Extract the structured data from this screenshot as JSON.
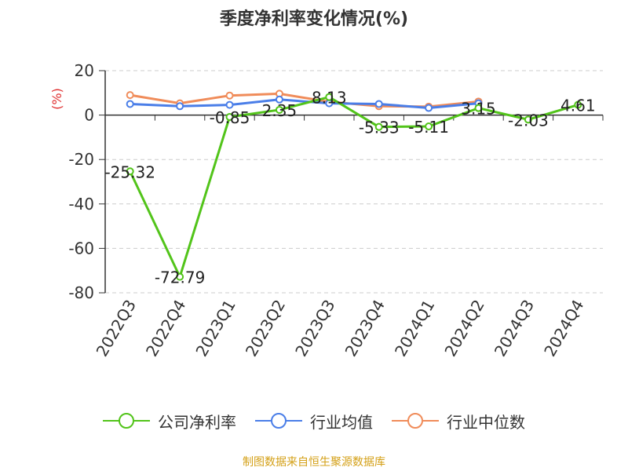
{
  "chart_data": {
    "type": "line",
    "title": "季度净利率变化情况(%)",
    "ylabel": "(%)",
    "xlabel": "",
    "ylim": [
      -80,
      20
    ],
    "yticks": [
      20,
      0,
      -20,
      -40,
      -60,
      -80
    ],
    "grid": true,
    "legend_position": "bottom",
    "categories": [
      "2022Q3",
      "2022Q4",
      "2023Q1",
      "2023Q2",
      "2023Q3",
      "2023Q4",
      "2024Q1",
      "2024Q2",
      "2024Q3",
      "2024Q4"
    ],
    "series": [
      {
        "name": "公司净利率",
        "color": "#52c41a",
        "values": [
          -25.32,
          -72.79,
          -0.85,
          2.35,
          8.13,
          -5.33,
          -5.11,
          3.15,
          -2.03,
          4.61
        ],
        "labels": [
          "-25.32",
          "-72.79",
          "-0.85",
          "2.35",
          "8.13",
          "-5.33",
          "-5.11",
          "3.15",
          "-2.03",
          "4.61"
        ]
      },
      {
        "name": "行业均值",
        "color": "#4a7ee8",
        "values": [
          5.0,
          4.0,
          4.6,
          7.0,
          5.3,
          5.0,
          3.2,
          5.3,
          null,
          null
        ]
      },
      {
        "name": "行业中位数",
        "color": "#f08c5a",
        "values": [
          9.0,
          5.3,
          8.8,
          9.6,
          6.0,
          4.0,
          3.8,
          6.1,
          null,
          null
        ]
      }
    ]
  },
  "source": "制图数据来自恒生聚源数据库",
  "colors": {
    "axis": "#333333",
    "grid": "#cccccc",
    "ylabel": "#e03030",
    "source": "#d4a017"
  }
}
